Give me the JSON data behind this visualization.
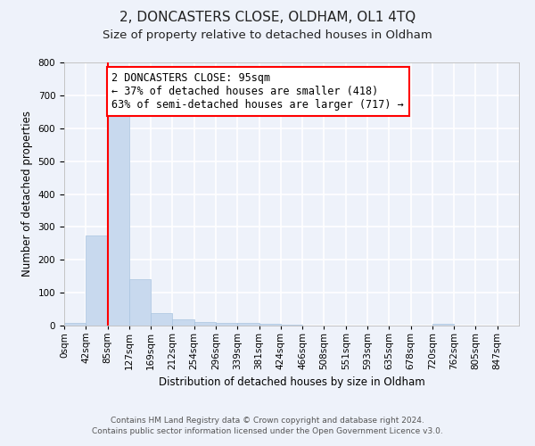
{
  "title": "2, DONCASTERS CLOSE, OLDHAM, OL1 4TQ",
  "subtitle": "Size of property relative to detached houses in Oldham",
  "xlabel": "Distribution of detached houses by size in Oldham",
  "ylabel": "Number of detached properties",
  "bar_color": "#c8d9ee",
  "bar_edge_color": "#aac4e0",
  "bin_labels": [
    "0sqm",
    "42sqm",
    "85sqm",
    "127sqm",
    "169sqm",
    "212sqm",
    "254sqm",
    "296sqm",
    "339sqm",
    "381sqm",
    "424sqm",
    "466sqm",
    "508sqm",
    "551sqm",
    "593sqm",
    "635sqm",
    "678sqm",
    "720sqm",
    "762sqm",
    "805sqm",
    "847sqm"
  ],
  "bar_heights": [
    7,
    275,
    640,
    140,
    38,
    20,
    12,
    9,
    7,
    5,
    4,
    1,
    0,
    0,
    0,
    0,
    0,
    5,
    0,
    0,
    0
  ],
  "ylim": [
    0,
    800
  ],
  "yticks": [
    0,
    100,
    200,
    300,
    400,
    500,
    600,
    700,
    800
  ],
  "red_line_x": 2,
  "annotation_text": "2 DONCASTERS CLOSE: 95sqm\n← 37% of detached houses are smaller (418)\n63% of semi-detached houses are larger (717) →",
  "footer_line1": "Contains HM Land Registry data © Crown copyright and database right 2024.",
  "footer_line2": "Contains public sector information licensed under the Open Government Licence v3.0.",
  "background_color": "#eef2fa",
  "grid_color": "#ffffff",
  "title_fontsize": 11,
  "subtitle_fontsize": 9.5,
  "annotation_fontsize": 8.5,
  "axis_label_fontsize": 8.5,
  "tick_fontsize": 7.5,
  "footer_fontsize": 6.5
}
